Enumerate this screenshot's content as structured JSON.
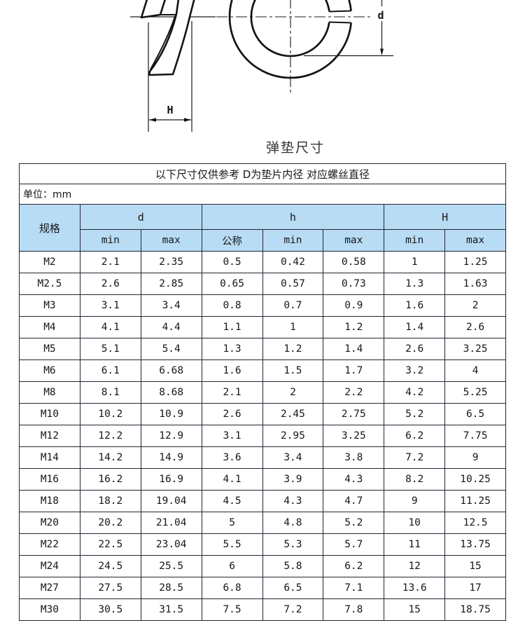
{
  "title": "弹垫尺寸",
  "drawing": {
    "side_view_dim_label": "H",
    "front_view_dim_label": "d"
  },
  "table": {
    "caption": "以下尺寸仅供参考 D为垫片内径 对应螺丝直径",
    "unit_note": "单位：mm",
    "col_spec": "规格",
    "group_d": "d",
    "group_h": "h",
    "group_H": "H",
    "sub_labels": [
      "min",
      "max",
      "公称",
      "min",
      "max",
      "min",
      "max"
    ],
    "rows": [
      [
        "M2",
        "2.1",
        "2.35",
        "0.5",
        "0.42",
        "0.58",
        "1",
        "1.25"
      ],
      [
        "M2.5",
        "2.6",
        "2.85",
        "0.65",
        "0.57",
        "0.73",
        "1.3",
        "1.63"
      ],
      [
        "M3",
        "3.1",
        "3.4",
        "0.8",
        "0.7",
        "0.9",
        "1.6",
        "2"
      ],
      [
        "M4",
        "4.1",
        "4.4",
        "1.1",
        "1",
        "1.2",
        "1.4",
        "2.6"
      ],
      [
        "M5",
        "5.1",
        "5.4",
        "1.3",
        "1.2",
        "1.4",
        "2.6",
        "3.25"
      ],
      [
        "M6",
        "6.1",
        "6.68",
        "1.6",
        "1.5",
        "1.7",
        "3.2",
        "4"
      ],
      [
        "M8",
        "8.1",
        "8.68",
        "2.1",
        "2",
        "2.2",
        "4.2",
        "5.25"
      ],
      [
        "M10",
        "10.2",
        "10.9",
        "2.6",
        "2.45",
        "2.75",
        "5.2",
        "6.5"
      ],
      [
        "M12",
        "12.2",
        "12.9",
        "3.1",
        "2.95",
        "3.25",
        "6.2",
        "7.75"
      ],
      [
        "M14",
        "14.2",
        "14.9",
        "3.6",
        "3.4",
        "3.8",
        "7.2",
        "9"
      ],
      [
        "M16",
        "16.2",
        "16.9",
        "4.1",
        "3.9",
        "4.3",
        "8.2",
        "10.25"
      ],
      [
        "M18",
        "18.2",
        "19.04",
        "4.5",
        "4.3",
        "4.7",
        "9",
        "11.25"
      ],
      [
        "M20",
        "20.2",
        "21.04",
        "5",
        "4.8",
        "5.2",
        "10",
        "12.5"
      ],
      [
        "M22",
        "22.5",
        "23.04",
        "5.5",
        "5.3",
        "5.7",
        "11",
        "13.75"
      ],
      [
        "M24",
        "24.5",
        "25.5",
        "6",
        "5.8",
        "6.2",
        "12",
        "15"
      ],
      [
        "M27",
        "27.5",
        "28.5",
        "6.8",
        "6.5",
        "7.1",
        "13.6",
        "17"
      ],
      [
        "M30",
        "30.5",
        "31.5",
        "7.5",
        "7.2",
        "7.8",
        "15",
        "18.75"
      ]
    ]
  }
}
